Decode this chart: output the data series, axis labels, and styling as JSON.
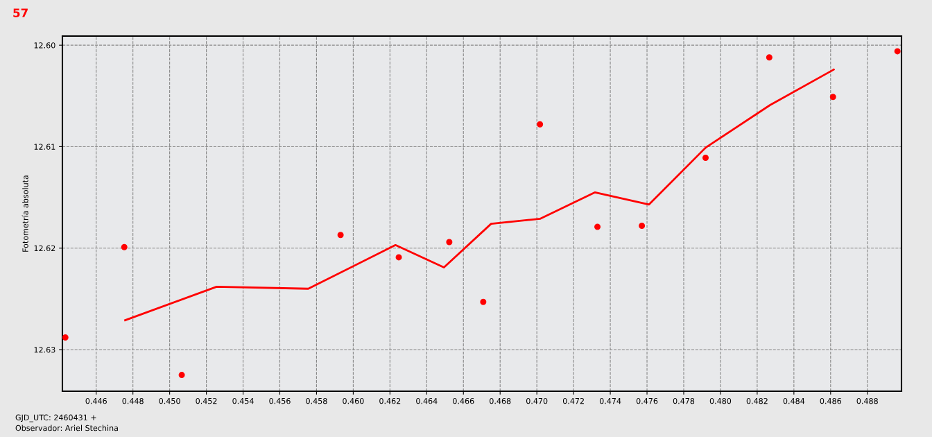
{
  "chart_data": {
    "type": "scatter",
    "title": "57",
    "ylabel": "Fotometría absoluta",
    "annotations": [
      "GJD_UTC: 2460431 +",
      "Observador: Ariel Stechina"
    ],
    "series": [
      {
        "color": "#ff0000",
        "marker": "circle",
        "x": [
          0.44432,
          0.44753,
          0.45066,
          0.45931,
          0.46248,
          0.46523,
          0.46708,
          0.47017,
          0.4733,
          0.47572,
          0.47919,
          0.48266,
          0.48613,
          0.48964
        ],
        "values": [
          12.6288,
          12.6199,
          12.6325,
          12.6187,
          12.6209,
          12.6194,
          12.6253,
          12.6078,
          12.6179,
          12.6178,
          12.6111,
          12.6012,
          12.6051,
          12.6006
        ]
      },
      {
        "type": "line",
        "color": "#ff0000",
        "marker": "none",
        "line_style": "solid",
        "x": [
          0.44758,
          0.45256,
          0.45755,
          0.4623,
          0.46494,
          0.46751,
          0.47019,
          0.47317,
          0.47611,
          0.47919,
          0.4827,
          0.48617
        ],
        "values": [
          12.6271,
          12.6238,
          12.624,
          12.6197,
          12.6219,
          12.6176,
          12.6171,
          12.6145,
          12.6157,
          12.6101,
          12.6059,
          12.6024
        ]
      }
    ],
    "xlim": [
      0.44416,
      0.48986
    ],
    "ylim": [
      12.6341,
      12.5991
    ],
    "xticks": [
      0.446,
      0.448,
      {
        "value": 0.45,
        "label": "0.450"
      },
      0.452,
      0.454,
      0.456,
      0.458,
      {
        "value": 0.46,
        "label": "0.460"
      },
      0.462,
      0.464,
      0.466,
      0.468,
      {
        "value": 0.47,
        "label": "0.470"
      },
      0.472,
      0.474,
      0.476,
      0.478,
      {
        "value": 0.48,
        "label": "0.480"
      },
      0.482,
      0.484,
      0.486,
      0.488
    ],
    "yticks": [
      {
        "value": 12.6,
        "label": "12.60"
      },
      12.61,
      12.62,
      12.63
    ],
    "grid": true
  }
}
